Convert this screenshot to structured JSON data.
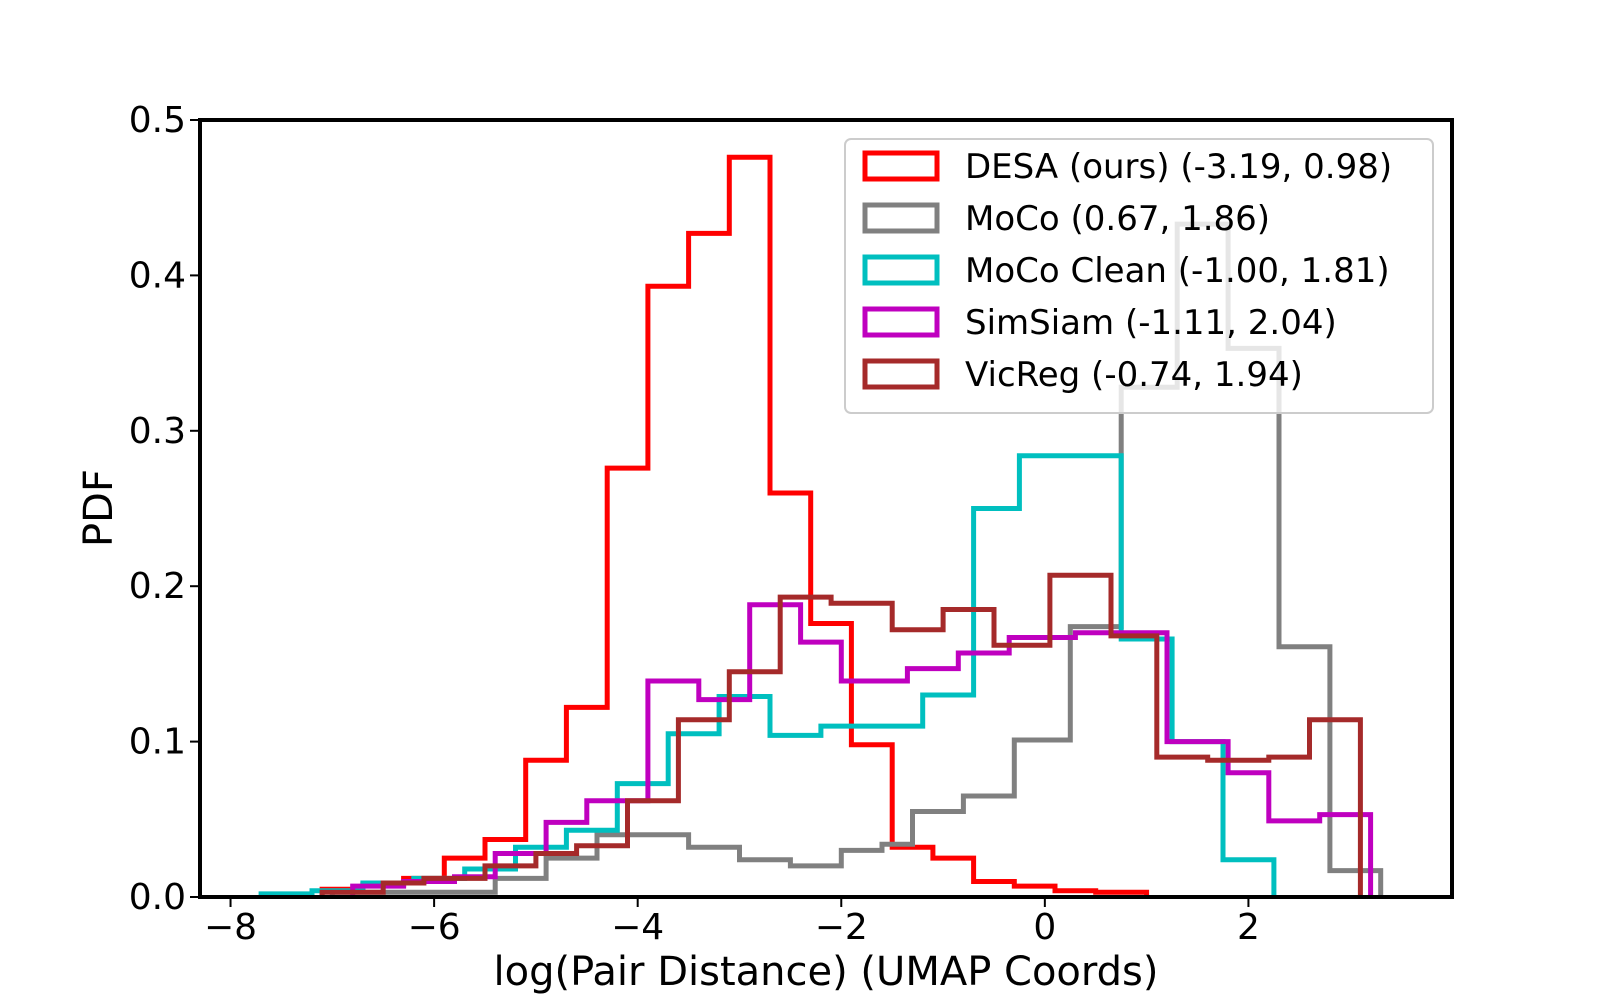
{
  "chart_data": {
    "type": "histogram-step",
    "title": "",
    "xlabel": "log(Pair Distance) (UMAP Coords)",
    "ylabel": "PDF",
    "xlim": [
      -8.3,
      4.0
    ],
    "ylim": [
      0,
      0.5
    ],
    "xticks": [
      -8,
      -6,
      -4,
      -2,
      0,
      2
    ],
    "xtick_labels": [
      "−8",
      "−6",
      "−4",
      "−2",
      "0",
      "2"
    ],
    "yticks": [
      0.0,
      0.1,
      0.2,
      0.3,
      0.4,
      0.5
    ],
    "ytick_labels": [
      "0.0",
      "0.1",
      "0.2",
      "0.3",
      "0.4",
      "0.5"
    ],
    "grid": false,
    "legend_position": "top-right",
    "series": [
      {
        "name": "DESA (ours) (-3.19, 0.98)",
        "color": "#ff0000",
        "edges": [
          -7.1,
          -6.7,
          -6.3,
          -5.9,
          -5.5,
          -5.1,
          -4.7,
          -4.3,
          -3.9,
          -3.5,
          -3.1,
          -2.7,
          -2.3,
          -1.9,
          -1.5,
          -1.1,
          -0.7,
          -0.3,
          0.1,
          0.5,
          1.0
        ],
        "values": [
          0.005,
          0.008,
          0.012,
          0.025,
          0.037,
          0.088,
          0.122,
          0.276,
          0.393,
          0.427,
          0.476,
          0.26,
          0.176,
          0.098,
          0.032,
          0.025,
          0.01,
          0.007,
          0.004,
          0.003
        ]
      },
      {
        "name": "MoCo (0.67, 1.86)",
        "color": "#808080",
        "edges": [
          -7.0,
          -5.4,
          -4.9,
          -4.4,
          -3.9,
          -3.5,
          -3.0,
          -2.5,
          -2.0,
          -1.6,
          -1.3,
          -0.8,
          -0.3,
          0.25,
          0.75,
          1.3,
          1.8,
          2.3,
          2.8,
          3.3
        ],
        "values": [
          0.003,
          0.012,
          0.025,
          0.04,
          0.04,
          0.032,
          0.024,
          0.02,
          0.03,
          0.034,
          0.055,
          0.065,
          0.101,
          0.174,
          0.328,
          0.433,
          0.353,
          0.161,
          0.017
        ]
      },
      {
        "name": "MoCo Clean (-1.00, 1.81)",
        "color": "#00bfbf",
        "edges": [
          -7.7,
          -7.2,
          -6.7,
          -6.2,
          -5.7,
          -5.2,
          -4.7,
          -4.2,
          -3.7,
          -3.2,
          -2.7,
          -2.2,
          -1.7,
          -1.2,
          -0.7,
          -0.25,
          0.75,
          1.25,
          1.75,
          2.25
        ],
        "values": [
          0.002,
          0.004,
          0.009,
          0.012,
          0.018,
          0.032,
          0.043,
          0.073,
          0.105,
          0.129,
          0.104,
          0.11,
          0.11,
          0.13,
          0.25,
          0.284,
          0.166,
          0.1,
          0.024
        ]
      },
      {
        "name": "SimSiam (-1.11, 2.04)",
        "color": "#bf00bf",
        "edges": [
          -6.8,
          -6.3,
          -5.8,
          -5.4,
          -4.9,
          -4.5,
          -3.9,
          -3.4,
          -2.9,
          -2.4,
          -2.0,
          -1.35,
          -0.85,
          -0.35,
          0.3,
          1.2,
          1.8,
          2.2,
          2.7,
          3.2
        ],
        "values": [
          0.007,
          0.01,
          0.013,
          0.028,
          0.048,
          0.062,
          0.139,
          0.127,
          0.188,
          0.164,
          0.139,
          0.147,
          0.157,
          0.167,
          0.17,
          0.1,
          0.08,
          0.049,
          0.053
        ]
      },
      {
        "name": "VicReg (-0.74, 1.94)",
        "color": "#a52a2a",
        "edges": [
          -7.1,
          -6.5,
          -6.1,
          -5.5,
          -5.0,
          -4.6,
          -4.1,
          -3.6,
          -3.1,
          -2.6,
          -2.1,
          -1.5,
          -1.0,
          -0.5,
          0.05,
          0.65,
          1.1,
          1.6,
          2.2,
          2.6,
          3.1
        ],
        "values": [
          0.003,
          0.009,
          0.012,
          0.02,
          0.028,
          0.033,
          0.062,
          0.114,
          0.145,
          0.193,
          0.189,
          0.172,
          0.185,
          0.162,
          0.207,
          0.168,
          0.09,
          0.088,
          0.09,
          0.114
        ]
      }
    ]
  }
}
